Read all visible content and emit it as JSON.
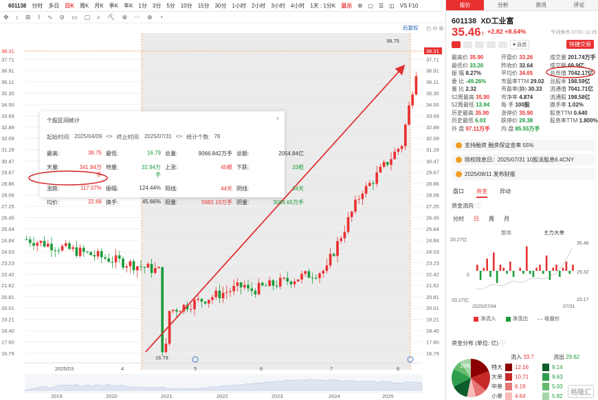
{
  "topbar": {
    "code": "601138",
    "periods": [
      "分时",
      "多日",
      "日K",
      "周K",
      "月K",
      "季K",
      "年K",
      "1分",
      "3分",
      "5分",
      "10分",
      "15分",
      "30分",
      "1小时",
      "2小时",
      "3小时",
      "4小时"
    ],
    "selected": "日K",
    "adjust": "1天 : 1分K",
    "display": "显示",
    "vs": "VS F10"
  },
  "toolbar": {
    "items": [
      "✥",
      "↕",
      "⊞",
      "⌇",
      "∿",
      "⊘",
      "▭",
      "▢",
      "⌕",
      "⛏",
      "⊗",
      "⋯",
      "⊕",
      "◔"
    ]
  },
  "chart": {
    "adjust_label": "后复权",
    "high_label": "38.75",
    "low_label": "16.79",
    "current_tag": "38.31",
    "yticks": [
      "38.31",
      "37.71",
      "36.91",
      "36.11",
      "35.30",
      "34.50",
      "33.69",
      "32.89",
      "32.09",
      "31.28",
      "30.47",
      "29.67",
      "28.86",
      "28.06",
      "27.25",
      "26.45",
      "25.64",
      "24.84",
      "24.03",
      "23.23",
      "22.42",
      "21.62",
      "20.81",
      "20.01",
      "19.21",
      "18.40",
      "17.60",
      "16.79"
    ],
    "months": [
      "2025/03",
      "4",
      "5",
      "6",
      "7",
      "8"
    ],
    "years": [
      "2019",
      "2020",
      "2021",
      "2022",
      "2023",
      "2024",
      "2025"
    ],
    "colors": {
      "up": "#e93030",
      "down": "#1a9a3a",
      "arrow": "#e03030",
      "shade": "#ebebeb"
    }
  },
  "stats": {
    "title": "个股区间统计",
    "start_label": "起始时间:",
    "start": "2025/04/09",
    "end_label": "终止时间:",
    "end": "2025/07/31",
    "count_label": "统计个数:",
    "count": "78",
    "rows": [
      [
        "最高:",
        "38.75",
        "最低:",
        "16.79",
        "总量:",
        "9066.842万手",
        "总额:",
        "2054.84亿"
      ],
      [
        "天量:",
        "341.84万手",
        "地量:",
        "32.94万手",
        "上涨:",
        "45根",
        "下跌:",
        "33根"
      ],
      [
        "涨跌:",
        "117.07%",
        "振幅:",
        "124.44%",
        "阳线:",
        "44天",
        "阴线:",
        "34天"
      ],
      [
        "均价:",
        "22.66",
        "换手:",
        "45.66%",
        "阳量:",
        "5982.19万手",
        "阴量:",
        "3084.65万手"
      ]
    ]
  },
  "right": {
    "tabs": [
      "报价",
      "分析",
      "资讯",
      "评论"
    ],
    "code": "601138",
    "name": "XD工业富",
    "price": "35.46",
    "arrow": "↑",
    "change": "+2.82",
    "pct": "+8.64%",
    "time": "午间休市 07/31 11:29",
    "zixuan": "自选",
    "trade": "快捷交易",
    "quote": [
      [
        "最高价",
        "35.90",
        "开盘价",
        "33.26",
        "成交量",
        "201.74万手"
      ],
      [
        "最低价",
        "33.20",
        "昨收价",
        "32.64",
        "成交额",
        "69.9亿"
      ],
      [
        "振  幅",
        "8.27%",
        "平均价",
        "34.65",
        "总市值",
        "7042.17亿"
      ],
      [
        "委  比",
        "-49.26%",
        "市盈率TTM",
        "29.02",
        "总股本",
        "198.59亿"
      ],
      [
        "量  比",
        "2.32",
        "市盈率(静)",
        "30.33",
        "流通值",
        "7041.71亿"
      ],
      [
        "52周最高",
        "35.90",
        "市净率",
        "4.874",
        "流通股",
        "198.58亿"
      ],
      [
        "52周最低",
        "13.94",
        "每 手",
        "100股",
        "换手率",
        "1.02%"
      ],
      [
        "历史最高",
        "35.90",
        "涨停价",
        "35.90",
        "股息TTM",
        "0.640"
      ],
      [
        "历史最低",
        "6.03",
        "跌停价",
        "29.38",
        "股息率TTM",
        "1.800%"
      ],
      [
        "外  盘",
        "97.11万手",
        "内  盘",
        "85.55万手",
        "",
        ""
      ]
    ],
    "info1": "支持融资 融资保证金率 55%",
    "info2": "除权除息日：2025/07/31  10股派股息6.4CNY",
    "info3": "2025/08/11  发布财报",
    "subtabs": [
      "盘口",
      "资金",
      "异动"
    ],
    "flow_title": "资金流向",
    "flow_tabs": [
      "分时",
      "日",
      "周",
      "月"
    ],
    "flow_hdr": [
      "整体",
      "主力大单"
    ],
    "flow_axis": {
      "ytop": "20.27亿",
      "yzero": "0",
      "ybot": "-20.27亿",
      "d1": "2025/07/04",
      "d2": "07/31",
      "rtop": "35.46",
      "rmid": "29.32",
      "rbot": "23.17"
    },
    "flow_values": [
      2,
      -3,
      1,
      4,
      -2,
      6,
      -4,
      2,
      1,
      -1,
      3,
      -2,
      0,
      1,
      -1,
      8,
      -1,
      -2,
      1,
      2,
      -1,
      5,
      -3,
      1,
      2,
      -2,
      1,
      3,
      -1,
      2
    ],
    "legend": [
      "净流入",
      "净流出",
      "收盘价"
    ],
    "dist_title": "资金分布 (单位: 亿)",
    "dist_head": [
      "流入",
      "33.7",
      "流出",
      "29.62"
    ],
    "dist_rows": [
      [
        "特大",
        "12.16",
        "9.14"
      ],
      [
        "大单",
        "10.71",
        "9.63"
      ],
      [
        "中单",
        "6.19",
        "5.03"
      ],
      [
        "小单",
        "4.64",
        "5.82"
      ]
    ],
    "pie_label": "19%",
    "watermark": "格隆汇"
  }
}
